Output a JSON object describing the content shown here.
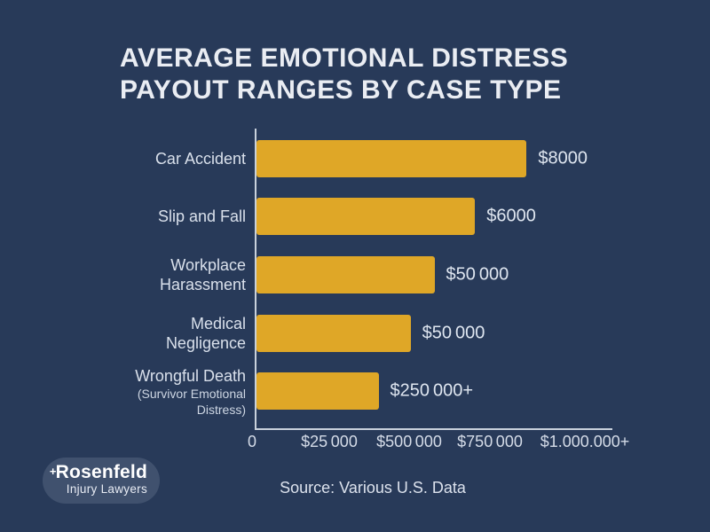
{
  "header": {
    "title_line1": "AVERAGE EMOTIONAL DISTRESS",
    "title_line2": "PAYOUT RANGES BY CASE TYPE"
  },
  "chart_data": {
    "type": "bar",
    "orientation": "horizontal",
    "title": "AVERAGE EMOTIONAL DISTRESS PAYOUT RANGES BY CASE TYPE",
    "categories": [
      "Car Accident",
      "Slip and Fall",
      "Workplace Harassment",
      "Medical Negligence",
      "Wrongful Death (Survivor Emotional Distress)"
    ],
    "category_lines": [
      [
        "Car Accident"
      ],
      [
        "Slip and Fall"
      ],
      [
        "Workplace",
        "Harassment"
      ],
      [
        "Medical",
        "Negligence"
      ],
      [
        "Wrongful Death",
        "(Survivor Emotional",
        "Distress)"
      ]
    ],
    "values": [
      8000,
      6000,
      50000,
      50000,
      250000
    ],
    "value_labels": [
      "$8000",
      "$6000",
      "$50 000",
      "$50 000",
      "$250 000+"
    ],
    "x_ticks": [
      "0",
      "$25 000",
      "$500 000",
      "$750 000",
      "$1.000.000+"
    ],
    "bar_length_pct": [
      75.9,
      61.4,
      50.0,
      43.3,
      34.3
    ],
    "bar_color": "#DFA727",
    "background_color": "#283A59",
    "text_color": "#DFE6F0",
    "axis_color": "#C9D1DC",
    "grid": false,
    "legend": false
  },
  "footer": {
    "source": "Source: Various U.S. Data",
    "brand_name": "Rosenfeld",
    "brand_plus": "+",
    "brand_tagline": "Injury Lawyers"
  }
}
